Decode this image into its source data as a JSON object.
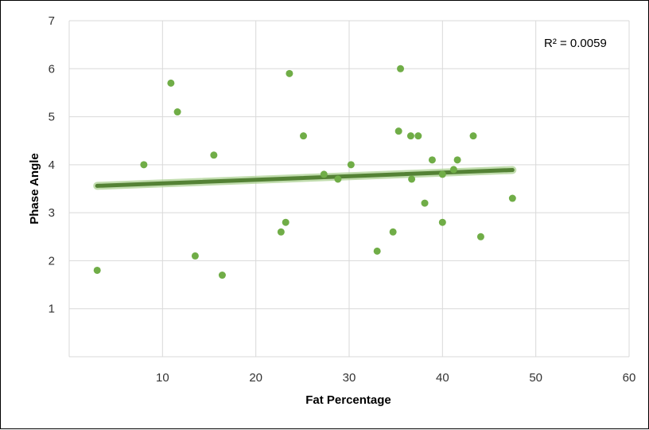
{
  "chart_data": {
    "type": "scatter",
    "title": "",
    "xlabel": "Fat Percentage",
    "ylabel": "Phase Angle",
    "xlim": [
      0,
      60
    ],
    "ylim": [
      0,
      7
    ],
    "xticks": [
      "10",
      "20",
      "30",
      "40",
      "50",
      "60"
    ],
    "yticks": [
      "1",
      "2",
      "3",
      "4",
      "5",
      "6",
      "7"
    ],
    "grid": true,
    "legend": "none",
    "annotation": "R² = 0.0059",
    "colors": {
      "points": "#70ad47",
      "trendline": "#548235",
      "grid": "#d9d9d9"
    },
    "series": [
      {
        "points": [
          [
            3.0,
            1.8
          ],
          [
            8.0,
            4.0
          ],
          [
            10.9,
            5.7
          ],
          [
            11.6,
            5.1
          ],
          [
            13.5,
            2.1
          ],
          [
            15.5,
            4.2
          ],
          [
            16.4,
            1.7
          ],
          [
            22.7,
            2.6
          ],
          [
            23.2,
            2.8
          ],
          [
            23.6,
            5.9
          ],
          [
            25.1,
            4.6
          ],
          [
            27.3,
            3.8
          ],
          [
            28.8,
            3.7
          ],
          [
            30.2,
            4.0
          ],
          [
            33.0,
            2.2
          ],
          [
            34.7,
            2.6
          ],
          [
            35.3,
            4.7
          ],
          [
            35.5,
            6.0
          ],
          [
            36.6,
            4.6
          ],
          [
            36.7,
            3.7
          ],
          [
            37.4,
            4.6
          ],
          [
            38.1,
            3.2
          ],
          [
            38.9,
            4.1
          ],
          [
            40.0,
            3.8
          ],
          [
            40.0,
            2.8
          ],
          [
            41.2,
            3.9
          ],
          [
            41.6,
            4.1
          ],
          [
            43.3,
            4.6
          ],
          [
            44.1,
            2.5
          ],
          [
            47.5,
            3.3
          ]
        ]
      }
    ],
    "trendline": {
      "x": [
        3.0,
        47.5
      ],
      "y": [
        3.56,
        3.89
      ]
    }
  }
}
